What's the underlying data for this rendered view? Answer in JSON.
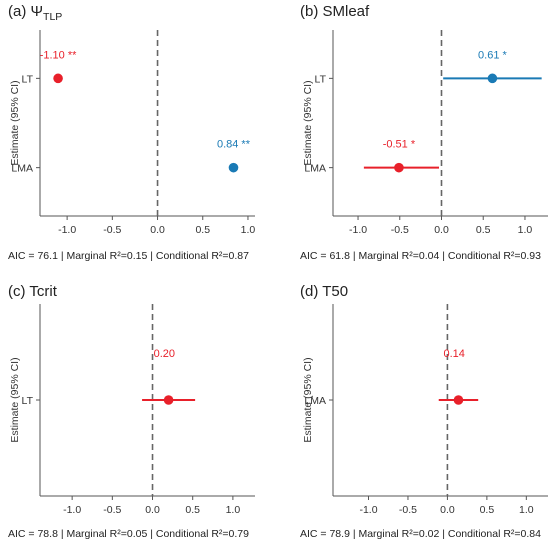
{
  "colors": {
    "negative": "#e8202a",
    "positive": "#1a7ab5",
    "axis": "#555555",
    "zero_line": "#666666"
  },
  "chart_data": [
    {
      "type": "forest",
      "panel": "(a)",
      "title_prefix": "(a) Ψ",
      "title_sub": "TLP",
      "ylabel": "Estimate (95% CI)",
      "categories": [
        "LT",
        "LMA"
      ],
      "xlim": [
        -1.3,
        1.1
      ],
      "xticks": [
        -1.0,
        -0.5,
        0.0,
        0.5,
        1.0
      ],
      "xtick_labels": [
        "-1.0",
        "-0.5",
        "0.0",
        "0.5",
        "1.0"
      ],
      "points": [
        {
          "category": "LT",
          "estimate": -1.1,
          "ci": [
            -1.1,
            -1.1
          ],
          "label": "-1.10 **",
          "color": "#e8202a"
        },
        {
          "category": "LMA",
          "estimate": 0.84,
          "ci": [
            0.84,
            0.84
          ],
          "label": "0.84 **",
          "color": "#1a7ab5"
        }
      ],
      "footer": "AIC = 76.1 | Marginal R²=0.15 | Conditional R²=0.87"
    },
    {
      "type": "forest",
      "panel": "(b)",
      "title_prefix": "(b) SMleaf",
      "title_sub": "",
      "ylabel": "Estimate (95% CI)",
      "categories": [
        "LT",
        "LMA"
      ],
      "xlim": [
        -1.3,
        1.3
      ],
      "xticks": [
        -1.0,
        -0.5,
        0.0,
        0.5,
        1.0
      ],
      "xtick_labels": [
        "-1.0",
        "-0.5",
        "0.0",
        "0.5",
        "1.0"
      ],
      "points": [
        {
          "category": "LT",
          "estimate": 0.61,
          "ci": [
            0.02,
            1.2
          ],
          "label": "0.61 *",
          "color": "#1a7ab5"
        },
        {
          "category": "LMA",
          "estimate": -0.51,
          "ci": [
            -0.93,
            -0.03
          ],
          "label": "-0.51 *",
          "color": "#e8202a"
        }
      ],
      "footer": "AIC = 61.8 | Marginal R²=0.04 | Conditional R²=0.93"
    },
    {
      "type": "forest",
      "panel": "(c)",
      "title_prefix": "(c) Tcrit",
      "title_sub": "",
      "ylabel": "Estimate (95% CI)",
      "categories": [
        "LT"
      ],
      "xlim": [
        -1.4,
        1.3
      ],
      "xticks": [
        -1.0,
        -0.5,
        0.0,
        0.5,
        1.0
      ],
      "xtick_labels": [
        "-1.0",
        "-0.5",
        "0.0",
        "0.5",
        "1.0"
      ],
      "points": [
        {
          "category": "LT",
          "estimate": 0.2,
          "ci": [
            -0.13,
            0.53
          ],
          "label": "0.20",
          "color": "#e8202a"
        }
      ],
      "footer": "AIC = 78.8 | Marginal R²=0.05 | Conditional R²=0.79"
    },
    {
      "type": "forest",
      "panel": "(d)",
      "title_prefix": "(d) T50",
      "title_sub": "",
      "ylabel": "Estimate (95% CI)",
      "categories": [
        "LMA"
      ],
      "xlim": [
        -1.45,
        1.3
      ],
      "xticks": [
        -1.0,
        -0.5,
        0.0,
        0.5,
        1.0
      ],
      "xtick_labels": [
        "-1.0",
        "-0.5",
        "0.0",
        "0.5",
        "1.0"
      ],
      "points": [
        {
          "category": "LMA",
          "estimate": 0.14,
          "ci": [
            -0.11,
            0.39
          ],
          "label": "0.14",
          "color": "#e8202a"
        }
      ],
      "footer": "AIC = 78.9 | Marginal R²=0.02 | Conditional R²=0.84"
    }
  ]
}
